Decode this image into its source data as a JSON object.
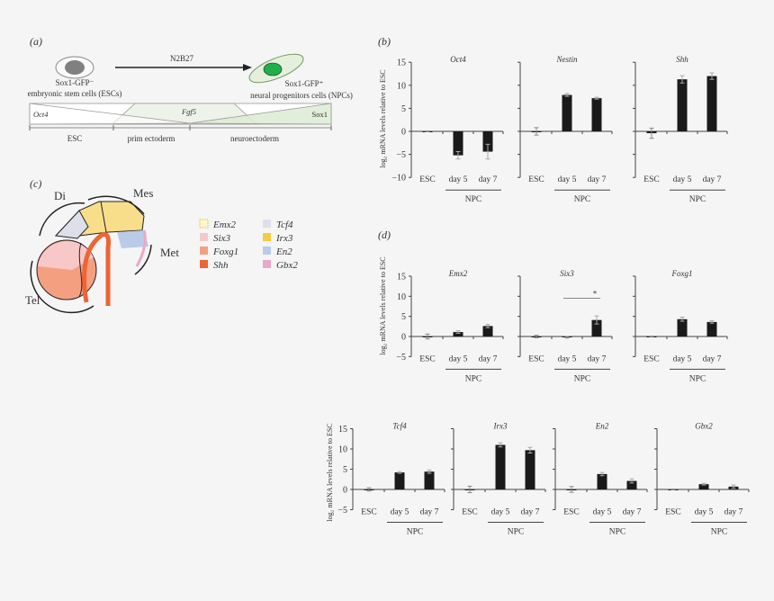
{
  "panel_labels": {
    "a": "(a)",
    "b": "(b)",
    "c": "(c)",
    "d": "(d)"
  },
  "panel_a": {
    "medium": "N2B27",
    "esc_marker": "Sox1-GFP⁻",
    "esc_name": "embryonic stem cells (ESCs)",
    "npc_marker": "Sox1-GFP⁺",
    "npc_name": "neural progenitors cells (NPCs)",
    "genes": {
      "left": "Oct4",
      "middle": "Fgf5",
      "right": "Sox1"
    },
    "stages": [
      "ESC",
      "prim ectoderm",
      "neuroectoderm"
    ],
    "colors": {
      "esc_nucleus": "#808080",
      "npc_nucleus": "#1fb04a",
      "npc_cell": "#e4f0dc",
      "sox1_fill": "#dcebd2"
    }
  },
  "panel_c": {
    "regions": {
      "di": "Di",
      "mes": "Mes",
      "met": "Met",
      "tel": "Tel"
    },
    "legend": [
      {
        "label": "Emx2",
        "color": "#fff6d2"
      },
      {
        "label": "Six3",
        "color": "#f8c8c8"
      },
      {
        "label": "Foxg1",
        "color": "#f4a080"
      },
      {
        "label": "Shh",
        "color": "#ee6434"
      },
      {
        "label": "Tcf4",
        "color": "#dde0ea"
      },
      {
        "label": "Irx3",
        "color": "#f5cc40"
      },
      {
        "label": "En2",
        "color": "#b9cbe8"
      },
      {
        "label": "Gbx2",
        "color": "#eaa8c8"
      }
    ]
  },
  "ylabel": "log₂ mRNA levels relative to ESC",
  "group_label": "NPC",
  "bar_color": "#1a1a1a",
  "chart_data": [
    {
      "type": "bar",
      "panel": "b",
      "title": "Oct4",
      "categories": [
        "ESC",
        "day 5",
        "day 7"
      ],
      "values": [
        0,
        -5.2,
        -4.4
      ],
      "errors": [
        0.1,
        0.8,
        1.6
      ],
      "ylim": [
        -10,
        15
      ],
      "yticks": [
        -10,
        -5,
        0,
        5,
        10,
        15
      ]
    },
    {
      "type": "bar",
      "panel": "b",
      "title": "Nestin",
      "categories": [
        "ESC",
        "day 5",
        "day 7"
      ],
      "values": [
        0,
        7.9,
        7.2
      ],
      "errors": [
        0.8,
        0.3,
        0.2
      ],
      "ylim": [
        -10,
        15
      ],
      "yticks": [
        -10,
        -5,
        0,
        5,
        10,
        15
      ]
    },
    {
      "type": "bar",
      "panel": "b",
      "title": "Shh",
      "categories": [
        "ESC",
        "day 5",
        "day 7"
      ],
      "values": [
        -0.4,
        11.3,
        12.0
      ],
      "errors": [
        1.1,
        0.8,
        0.7
      ],
      "ylim": [
        -10,
        15
      ],
      "yticks": [
        -10,
        -5,
        0,
        5,
        10,
        15
      ]
    },
    {
      "type": "bar",
      "panel": "d",
      "title": "Emx2",
      "categories": [
        "ESC",
        "day 5",
        "day 7"
      ],
      "values": [
        0,
        1.1,
        2.6
      ],
      "errors": [
        0.6,
        0.3,
        0.4
      ],
      "ylim": [
        -5,
        15
      ],
      "yticks": [
        -5,
        0,
        5,
        10,
        15
      ]
    },
    {
      "type": "bar",
      "panel": "d",
      "title": "Six3",
      "categories": [
        "ESC",
        "day 5",
        "day 7"
      ],
      "values": [
        0,
        -0.2,
        4.1
      ],
      "errors": [
        0.3,
        0.2,
        1.0
      ],
      "ylim": [
        -5,
        15
      ],
      "yticks": [
        -5,
        0,
        5,
        10,
        15
      ],
      "annotations": [
        {
          "from": "day 5",
          "to": "day 7",
          "y": 9.5,
          "text": "*"
        }
      ]
    },
    {
      "type": "bar",
      "panel": "d",
      "title": "Foxg1",
      "categories": [
        "ESC",
        "day 5",
        "day 7"
      ],
      "values": [
        0,
        4.3,
        3.6
      ],
      "errors": [
        0.1,
        0.5,
        0.3
      ],
      "ylim": [
        -5,
        15
      ],
      "yticks": [
        -5,
        0,
        5,
        10,
        15
      ]
    },
    {
      "type": "bar",
      "panel": "d",
      "title": "Tcf4",
      "categories": [
        "ESC",
        "day 5",
        "day 7"
      ],
      "values": [
        0,
        4.2,
        4.4
      ],
      "errors": [
        0.4,
        0.2,
        0.4
      ],
      "ylim": [
        -5,
        15
      ],
      "yticks": [
        -5,
        0,
        5,
        10,
        15
      ]
    },
    {
      "type": "bar",
      "panel": "d",
      "title": "Irx3",
      "categories": [
        "ESC",
        "day 5",
        "day 7"
      ],
      "values": [
        0,
        11.0,
        9.7
      ],
      "errors": [
        0.8,
        0.5,
        0.7
      ],
      "ylim": [
        -5,
        15
      ],
      "yticks": [
        -5,
        0,
        5,
        10,
        15
      ]
    },
    {
      "type": "bar",
      "panel": "d",
      "title": "En2",
      "categories": [
        "ESC",
        "day 5",
        "day 7"
      ],
      "values": [
        0,
        3.8,
        2.1
      ],
      "errors": [
        0.7,
        0.4,
        0.5
      ],
      "ylim": [
        -5,
        15
      ],
      "yticks": [
        -5,
        0,
        5,
        10,
        15
      ]
    },
    {
      "type": "bar",
      "panel": "d",
      "title": "Gbx2",
      "categories": [
        "ESC",
        "day 5",
        "day 7"
      ],
      "values": [
        0,
        1.3,
        0.7
      ],
      "errors": [
        0.1,
        0.2,
        0.4
      ],
      "ylim": [
        -5,
        15
      ],
      "yticks": [
        -5,
        0,
        5,
        10,
        15
      ]
    }
  ]
}
